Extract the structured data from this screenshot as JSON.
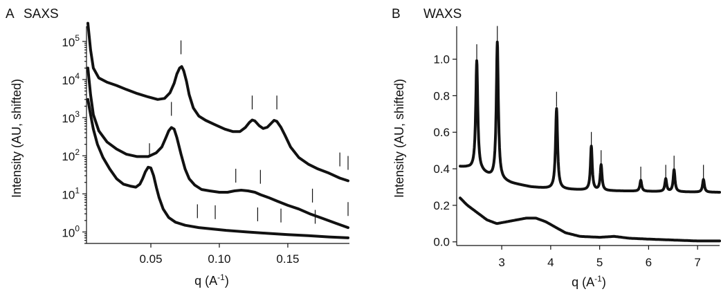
{
  "chart_data": [
    {
      "type": "line",
      "panel": "A",
      "title": "SAXS",
      "xlabel": "q (A",
      "xlabel_sup": "-1",
      "xlabel_end": ")",
      "ylabel": "Intensity (AU, shifted)",
      "xlim": [
        0.003,
        0.195
      ],
      "ylim": [
        0.5,
        250000
      ],
      "yscale": "log",
      "xticks": [
        0.05,
        0.1,
        0.15
      ],
      "xtick_labels": [
        "0.05",
        "0.10",
        "0.15"
      ],
      "yticks": [
        1,
        10,
        100,
        1000,
        10000,
        100000
      ],
      "ytick_base": "10",
      "ytick_exponents": [
        "0",
        "1",
        "2",
        "3",
        "4",
        "5"
      ],
      "series": [
        {
          "x": [
            0.004,
            0.006,
            0.008,
            0.012,
            0.018,
            0.025,
            0.032,
            0.04,
            0.048,
            0.055,
            0.06,
            0.064,
            0.067,
            0.069,
            0.071,
            0.0725,
            0.074,
            0.076,
            0.078,
            0.081,
            0.085,
            0.09,
            0.097,
            0.104,
            0.11,
            0.115,
            0.119,
            0.122,
            0.124,
            0.126,
            0.129,
            0.132,
            0.135,
            0.138,
            0.14,
            0.142,
            0.145,
            0.148,
            0.152,
            0.158,
            0.165,
            0.172,
            0.18,
            0.188,
            0.194
          ],
          "y": [
            300000,
            60000,
            20000,
            11000,
            8500,
            7000,
            5500,
            4300,
            3500,
            3000,
            3200,
            4500,
            8000,
            14000,
            20000,
            22000,
            17000,
            9000,
            4000,
            1800,
            1100,
            850,
            650,
            500,
            430,
            430,
            550,
            750,
            870,
            820,
            620,
            520,
            560,
            720,
            850,
            800,
            560,
            340,
            170,
            90,
            60,
            45,
            35,
            26,
            22
          ]
        },
        {
          "x": [
            0.004,
            0.006,
            0.008,
            0.012,
            0.018,
            0.025,
            0.032,
            0.04,
            0.048,
            0.054,
            0.058,
            0.061,
            0.063,
            0.065,
            0.067,
            0.069,
            0.072,
            0.075,
            0.078,
            0.082,
            0.087,
            0.093,
            0.1,
            0.106,
            0.111,
            0.116,
            0.121,
            0.126,
            0.13,
            0.136,
            0.142,
            0.15,
            0.158,
            0.166,
            0.175,
            0.185,
            0.194
          ],
          "y": [
            20000,
            4000,
            1200,
            450,
            230,
            150,
            110,
            95,
            95,
            120,
            170,
            300,
            450,
            550,
            500,
            300,
            110,
            45,
            25,
            17,
            13,
            12,
            11,
            11,
            12,
            12.5,
            12,
            11,
            9.5,
            8,
            6.5,
            5,
            4,
            3,
            2.3,
            1.7,
            1.3
          ]
        },
        {
          "x": [
            0.004,
            0.006,
            0.008,
            0.011,
            0.015,
            0.02,
            0.025,
            0.03,
            0.035,
            0.039,
            0.042,
            0.044,
            0.046,
            0.048,
            0.05,
            0.052,
            0.054,
            0.056,
            0.059,
            0.063,
            0.068,
            0.075,
            0.085,
            0.095,
            0.105,
            0.12,
            0.135,
            0.15,
            0.165,
            0.18,
            0.194
          ],
          "y": [
            3000,
            1200,
            500,
            200,
            90,
            45,
            25,
            18,
            16,
            15,
            18,
            25,
            38,
            50,
            48,
            30,
            15,
            8,
            4,
            2.4,
            1.8,
            1.5,
            1.3,
            1.2,
            1.1,
            1.0,
            0.92,
            0.85,
            0.8,
            0.74,
            0.7
          ]
        }
      ],
      "reflection_markers": [
        {
          "x": 0.072,
          "y": 70000
        },
        {
          "x": 0.124,
          "y": 2500
        },
        {
          "x": 0.142,
          "y": 2500
        },
        {
          "x": 0.188,
          "y": 80
        },
        {
          "x": 0.194,
          "y": 65
        },
        {
          "x": 0.065,
          "y": 1700
        },
        {
          "x": 0.112,
          "y": 30
        },
        {
          "x": 0.13,
          "y": 28
        },
        {
          "x": 0.168,
          "y": 9
        },
        {
          "x": 0.194,
          "y": 4
        },
        {
          "x": 0.049,
          "y": 140
        },
        {
          "x": 0.084,
          "y": 3.5
        },
        {
          "x": 0.097,
          "y": 3.3
        },
        {
          "x": 0.128,
          "y": 2.9
        },
        {
          "x": 0.145,
          "y": 2.7
        },
        {
          "x": 0.17,
          "y": 2.5
        }
      ]
    },
    {
      "type": "line",
      "panel": "B",
      "title": "WAXS",
      "xlabel": "q (A",
      "xlabel_sup": "-1",
      "xlabel_end": ")",
      "ylabel": "Intensity (AU, shifted)",
      "xlim": [
        2.08,
        7.45
      ],
      "ylim": [
        -0.02,
        1.18
      ],
      "xticks": [
        3,
        4,
        5,
        6,
        7
      ],
      "xtick_labels": [
        "3",
        "4",
        "5",
        "6",
        "7"
      ],
      "yticks": [
        0.0,
        0.2,
        0.4,
        0.6,
        0.8,
        1.0
      ],
      "ytick_labels": [
        "0.0",
        "0.2",
        "0.4",
        "0.6",
        "0.8",
        "1.0"
      ],
      "baselines": [
        {
          "x": [
            2.15,
            2.3,
            2.6,
            2.8,
            3.2,
            3.6,
            4.0,
            4.5,
            5.0,
            5.5,
            6.0,
            6.5,
            7.0,
            7.45
          ],
          "y": [
            0.41,
            0.405,
            0.38,
            0.35,
            0.32,
            0.3,
            0.29,
            0.285,
            0.28,
            0.278,
            0.276,
            0.274,
            0.272,
            0.271
          ]
        },
        {
          "x": [
            2.15,
            2.3,
            2.5,
            2.7,
            2.9,
            3.1,
            3.3,
            3.5,
            3.7,
            3.9,
            4.1,
            4.3,
            4.6,
            5.0,
            5.3,
            5.6,
            6.0,
            6.5,
            7.0,
            7.45
          ],
          "y": [
            0.24,
            0.2,
            0.16,
            0.12,
            0.1,
            0.11,
            0.12,
            0.13,
            0.13,
            0.11,
            0.08,
            0.05,
            0.03,
            0.025,
            0.03,
            0.02,
            0.015,
            0.01,
            0.005,
            0.005
          ]
        }
      ],
      "peaks": [
        {
          "x": 2.49,
          "height": 0.6,
          "width": 0.025
        },
        {
          "x": 2.91,
          "height": 0.75,
          "width": 0.025
        },
        {
          "x": 4.12,
          "height": 0.44,
          "width": 0.025
        },
        {
          "x": 4.83,
          "height": 0.24,
          "width": 0.022
        },
        {
          "x": 5.03,
          "height": 0.14,
          "width": 0.022
        },
        {
          "x": 5.84,
          "height": 0.06,
          "width": 0.022
        },
        {
          "x": 6.35,
          "height": 0.07,
          "width": 0.022
        },
        {
          "x": 6.52,
          "height": 0.12,
          "width": 0.022
        },
        {
          "x": 7.12,
          "height": 0.07,
          "width": 0.022
        }
      ],
      "reflection_markers": [
        {
          "x": 2.49,
          "y": 1.04
        },
        {
          "x": 2.91,
          "y": 1.14
        },
        {
          "x": 4.12,
          "y": 0.78
        },
        {
          "x": 4.83,
          "y": 0.56
        },
        {
          "x": 5.03,
          "y": 0.46
        },
        {
          "x": 5.84,
          "y": 0.37
        },
        {
          "x": 6.35,
          "y": 0.38
        },
        {
          "x": 6.52,
          "y": 0.43
        },
        {
          "x": 7.12,
          "y": 0.38
        }
      ]
    }
  ]
}
